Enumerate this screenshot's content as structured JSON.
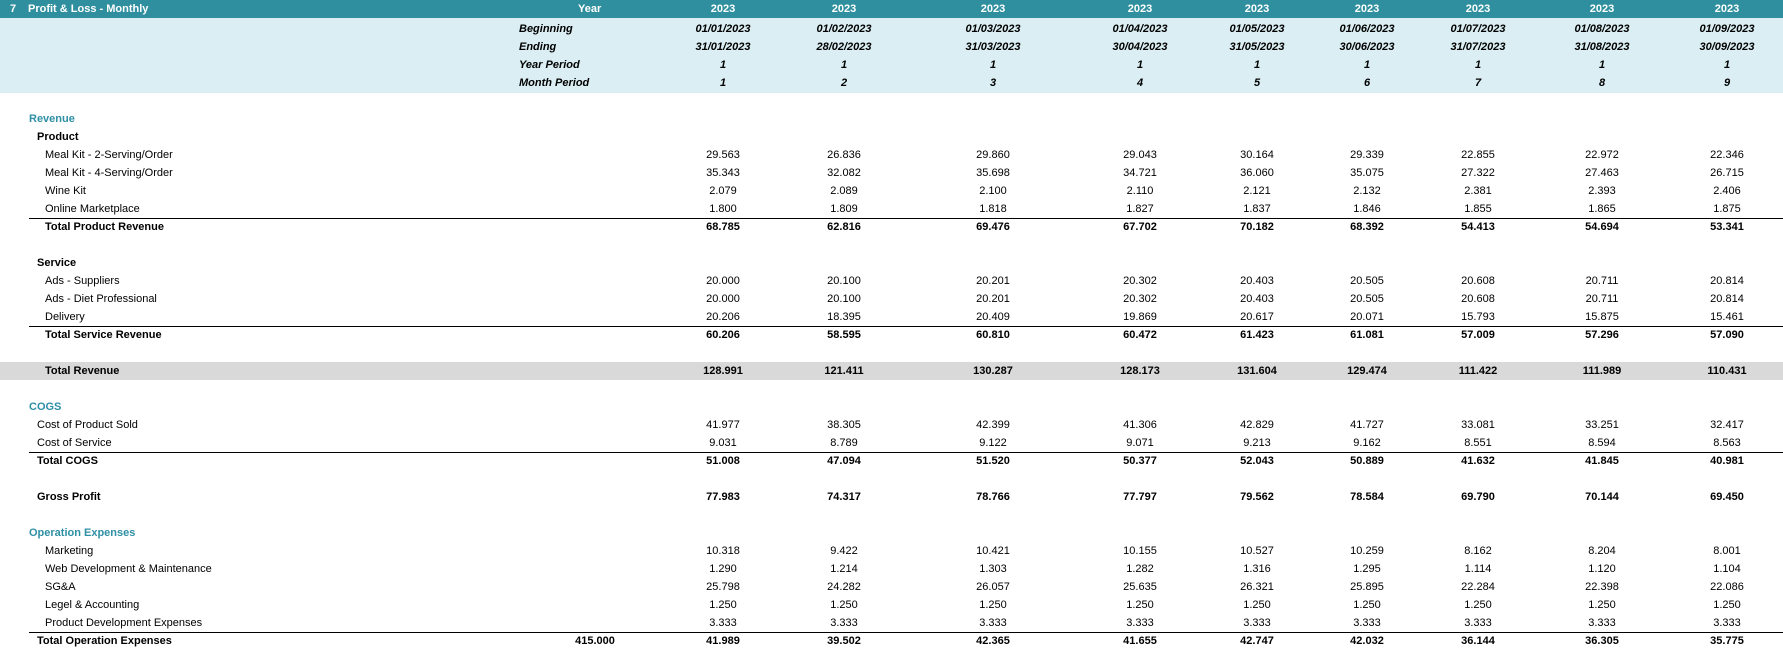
{
  "sheet": {
    "number": "7",
    "title": "Profit & Loss - Monthly",
    "year_label": "Year",
    "header_labels": [
      "Beginning",
      "Ending",
      "Year Period",
      "Month Period"
    ],
    "columns": [
      {
        "year": "2023",
        "beginning": "01/01/2023",
        "ending": "31/01/2023",
        "year_period": "1",
        "month_period": "1"
      },
      {
        "year": "2023",
        "beginning": "01/02/2023",
        "ending": "28/02/2023",
        "year_period": "1",
        "month_period": "2"
      },
      {
        "year": "2023",
        "beginning": "01/03/2023",
        "ending": "31/03/2023",
        "year_period": "1",
        "month_period": "3"
      },
      {
        "year": "2023",
        "beginning": "01/04/2023",
        "ending": "30/04/2023",
        "year_period": "1",
        "month_period": "4"
      },
      {
        "year": "2023",
        "beginning": "01/05/2023",
        "ending": "31/05/2023",
        "year_period": "1",
        "month_period": "5"
      },
      {
        "year": "2023",
        "beginning": "01/06/2023",
        "ending": "30/06/2023",
        "year_period": "1",
        "month_period": "6"
      },
      {
        "year": "2023",
        "beginning": "01/07/2023",
        "ending": "31/07/2023",
        "year_period": "1",
        "month_period": "7"
      },
      {
        "year": "2023",
        "beginning": "01/08/2023",
        "ending": "31/08/2023",
        "year_period": "1",
        "month_period": "8"
      },
      {
        "year": "2023",
        "beginning": "01/09/2023",
        "ending": "30/09/2023",
        "year_period": "1",
        "month_period": "9"
      }
    ]
  },
  "rows": [
    {
      "label": "Revenue",
      "kind": "section"
    },
    {
      "label": "Product",
      "kind": "subsection"
    },
    {
      "label": "Meal Kit -  2-Serving/Order",
      "kind": "item",
      "values": [
        "29.563",
        "26.836",
        "29.860",
        "29.043",
        "30.164",
        "29.339",
        "22.855",
        "22.972",
        "22.346"
      ]
    },
    {
      "label": "Meal Kit -  4-Serving/Order",
      "kind": "item",
      "values": [
        "35.343",
        "32.082",
        "35.698",
        "34.721",
        "36.060",
        "35.075",
        "27.322",
        "27.463",
        "26.715"
      ]
    },
    {
      "label": "Wine Kit",
      "kind": "item",
      "values": [
        "2.079",
        "2.089",
        "2.100",
        "2.110",
        "2.121",
        "2.132",
        "2.381",
        "2.393",
        "2.406"
      ]
    },
    {
      "label": "Online Marketplace",
      "kind": "item",
      "values": [
        "1.800",
        "1.809",
        "1.818",
        "1.827",
        "1.837",
        "1.846",
        "1.855",
        "1.865",
        "1.875"
      ]
    },
    {
      "label": "Total Product Revenue",
      "kind": "total",
      "values": [
        "68.785",
        "62.816",
        "69.476",
        "67.702",
        "70.182",
        "68.392",
        "54.413",
        "54.694",
        "53.341"
      ]
    },
    {
      "kind": "blank"
    },
    {
      "label": "Service",
      "kind": "subsection"
    },
    {
      "label": "Ads - Suppliers",
      "kind": "item",
      "values": [
        "20.000",
        "20.100",
        "20.201",
        "20.302",
        "20.403",
        "20.505",
        "20.608",
        "20.711",
        "20.814"
      ]
    },
    {
      "label": "Ads -  Diet Professional",
      "kind": "item",
      "values": [
        "20.000",
        "20.100",
        "20.201",
        "20.302",
        "20.403",
        "20.505",
        "20.608",
        "20.711",
        "20.814"
      ]
    },
    {
      "label": "Delivery",
      "kind": "item",
      "values": [
        "20.206",
        "18.395",
        "20.409",
        "19.869",
        "20.617",
        "20.071",
        "15.793",
        "15.875",
        "15.461"
      ]
    },
    {
      "label": "Total Service Revenue",
      "kind": "total",
      "values": [
        "60.206",
        "58.595",
        "60.810",
        "60.472",
        "61.423",
        "61.081",
        "57.009",
        "57.296",
        "57.090"
      ]
    },
    {
      "kind": "blank"
    },
    {
      "label": "Total Revenue",
      "kind": "grand",
      "values": [
        "128.991",
        "121.411",
        "130.287",
        "128.173",
        "131.604",
        "129.474",
        "111.422",
        "111.989",
        "110.431"
      ]
    },
    {
      "kind": "blank"
    },
    {
      "label": "COGS",
      "kind": "section"
    },
    {
      "label": "Cost of Product Sold",
      "kind": "item2",
      "values": [
        "41.977",
        "38.305",
        "42.399",
        "41.306",
        "42.829",
        "41.727",
        "33.081",
        "33.251",
        "32.417"
      ]
    },
    {
      "label": "Cost of Service",
      "kind": "item2",
      "values": [
        "9.031",
        "8.789",
        "9.122",
        "9.071",
        "9.213",
        "9.162",
        "8.551",
        "8.594",
        "8.563"
      ]
    },
    {
      "label": "Total COGS",
      "kind": "total2",
      "values": [
        "51.008",
        "47.094",
        "51.520",
        "50.377",
        "52.043",
        "50.889",
        "41.632",
        "41.845",
        "40.981"
      ]
    },
    {
      "kind": "blank"
    },
    {
      "label": "Gross Profit",
      "kind": "total2nl",
      "values": [
        "77.983",
        "74.317",
        "78.766",
        "77.797",
        "79.562",
        "78.584",
        "69.790",
        "70.144",
        "69.450"
      ]
    },
    {
      "kind": "blank"
    },
    {
      "label": "Operation Expenses",
      "kind": "section"
    },
    {
      "label": "Marketing",
      "kind": "item",
      "values": [
        "10.318",
        "9.422",
        "10.421",
        "10.155",
        "10.527",
        "10.259",
        "8.162",
        "8.204",
        "8.001"
      ]
    },
    {
      "label": "Web Development & Maintenance",
      "kind": "item",
      "values": [
        "1.290",
        "1.214",
        "1.303",
        "1.282",
        "1.316",
        "1.295",
        "1.114",
        "1.120",
        "1.104"
      ]
    },
    {
      "label": "SG&A",
      "kind": "item",
      "values": [
        "25.798",
        "24.282",
        "26.057",
        "25.635",
        "26.321",
        "25.895",
        "22.284",
        "22.398",
        "22.086"
      ]
    },
    {
      "label": "Legel & Accounting",
      "kind": "item",
      "values": [
        "1.250",
        "1.250",
        "1.250",
        "1.250",
        "1.250",
        "1.250",
        "1.250",
        "1.250",
        "1.250"
      ]
    },
    {
      "label": "Product Development Expenses",
      "kind": "item",
      "values": [
        "3.333",
        "3.333",
        "3.333",
        "3.333",
        "3.333",
        "3.333",
        "3.333",
        "3.333",
        "3.333"
      ]
    },
    {
      "label": "Total Operation Expenses",
      "kind": "total2",
      "extra": "415.000",
      "values": [
        "41.989",
        "39.502",
        "42.365",
        "41.655",
        "42.747",
        "42.032",
        "36.144",
        "36.305",
        "35.775"
      ]
    }
  ]
}
